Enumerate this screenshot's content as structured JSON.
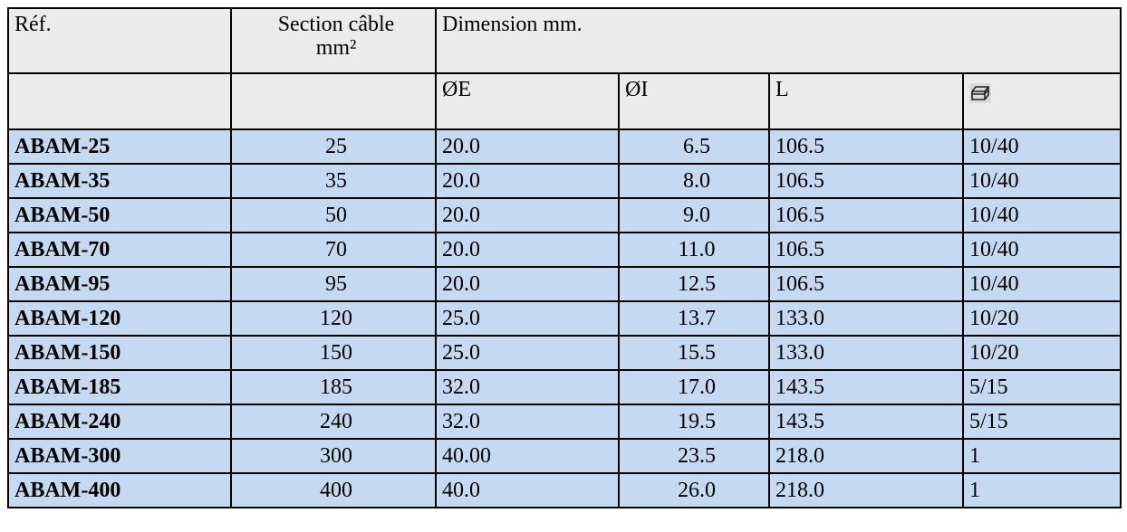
{
  "header": {
    "ref": "Réf.",
    "section_line1": "Section câble",
    "section_line2": "mm²",
    "dimension": "Dimension mm.",
    "col_e": "ØE",
    "col_i": "ØI",
    "col_l": "L",
    "packaging_icon": "package-box-icon"
  },
  "rows": [
    {
      "ref": "ABAM-25",
      "section": "25",
      "e": "20.0",
      "i": "6.5",
      "l": "106.5",
      "pack": "10/40"
    },
    {
      "ref": "ABAM-35",
      "section": "35",
      "e": "20.0",
      "i": "8.0",
      "l": "106.5",
      "pack": "10/40"
    },
    {
      "ref": "ABAM-50",
      "section": "50",
      "e": "20.0",
      "i": "9.0",
      "l": "106.5",
      "pack": "10/40"
    },
    {
      "ref": "ABAM-70",
      "section": "70",
      "e": "20.0",
      "i": "11.0",
      "l": "106.5",
      "pack": "10/40"
    },
    {
      "ref": "ABAM-95",
      "section": "95",
      "e": "20.0",
      "i": "12.5",
      "l": "106.5",
      "pack": "10/40"
    },
    {
      "ref": "ABAM-120",
      "section": "120",
      "e": "25.0",
      "i": "13.7",
      "l": "133.0",
      "pack": "10/20"
    },
    {
      "ref": "ABAM-150",
      "section": "150",
      "e": "25.0",
      "i": "15.5",
      "l": "133.0",
      "pack": "10/20"
    },
    {
      "ref": "ABAM-185",
      "section": "185",
      "e": "32.0",
      "i": "17.0",
      "l": "143.5",
      "pack": "5/15"
    },
    {
      "ref": "ABAM-240",
      "section": "240",
      "e": "32.0",
      "i": "19.5",
      "l": "143.5",
      "pack": "5/15"
    },
    {
      "ref": "ABAM-300",
      "section": "300",
      "e": "40.00",
      "i": "23.5",
      "l": "218.0",
      "pack": "1"
    },
    {
      "ref": "ABAM-400",
      "section": "400",
      "e": "40.0",
      "i": "26.0",
      "l": "218.0",
      "pack": "1"
    }
  ],
  "colors": {
    "header_bg": "#ececec",
    "row_bg": "#c5d9f1",
    "border": "#000000"
  }
}
